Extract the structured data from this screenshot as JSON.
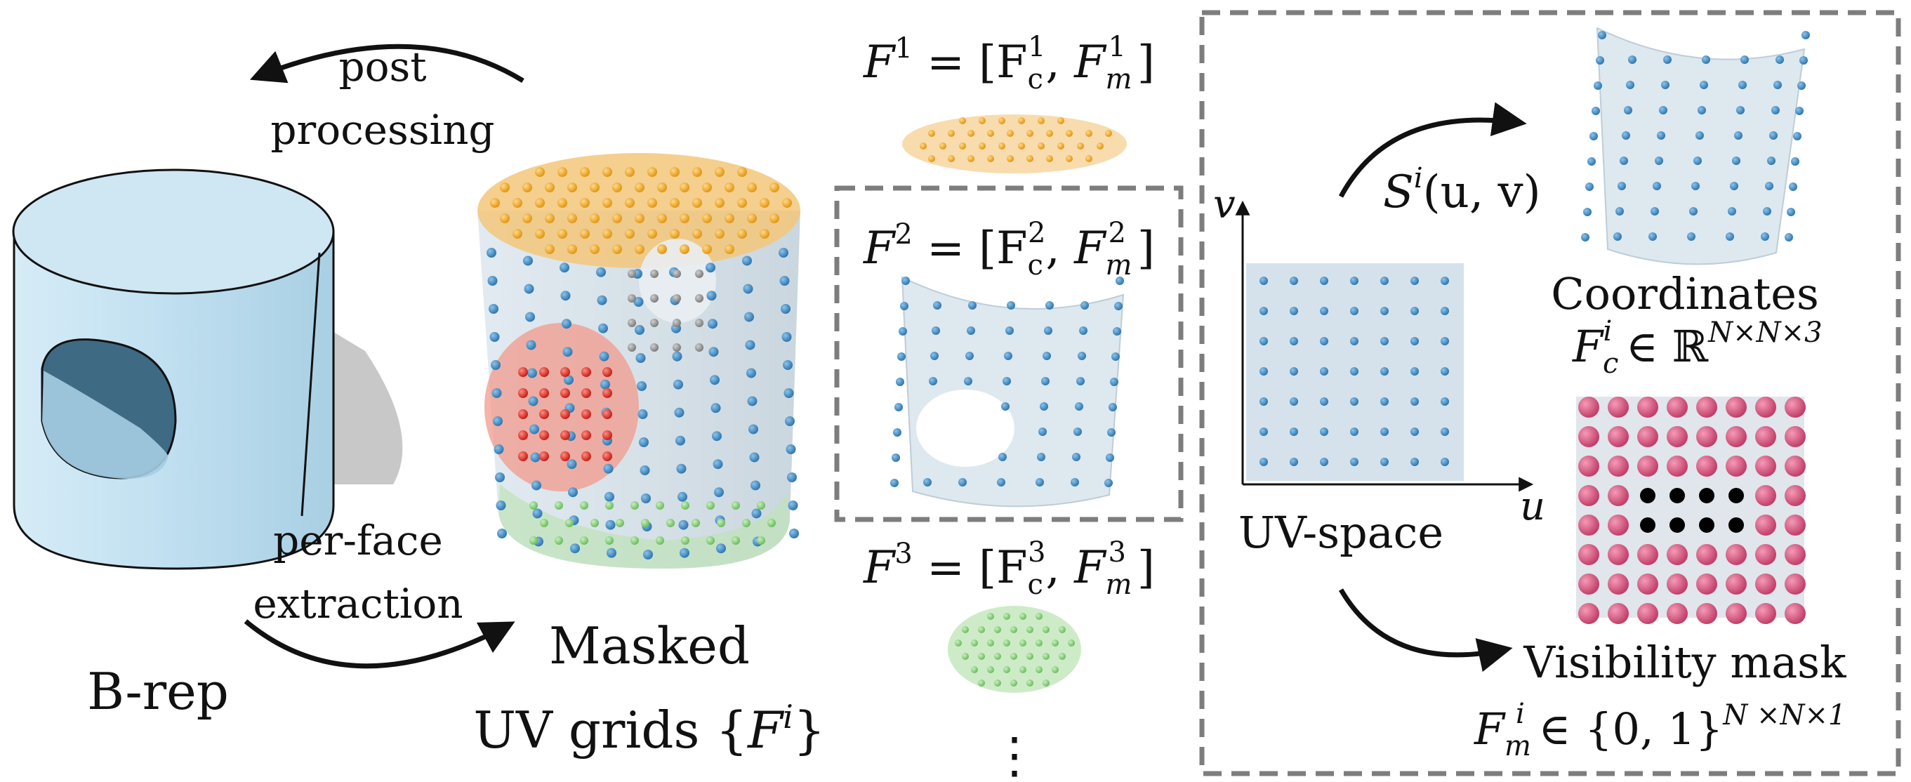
{
  "labels": {
    "post_processing_line1": "post",
    "post_processing_line2": "processing",
    "per_face_line1": "per-face",
    "per_face_line2": "extraction",
    "brep": "B-rep",
    "masked_line1": "Masked",
    "masked_line2_text": "UV grids {",
    "masked_line2_sym": "F",
    "masked_line2_sup": "i",
    "masked_line2_close": "}",
    "uv_space": "UV-space",
    "coordinates": "Coordinates",
    "visibility_mask": "Visibility mask",
    "axis_u": "u",
    "axis_v": "v",
    "ellipsis": "⋮"
  },
  "equations": {
    "f1": {
      "lhs": "F",
      "sup": "1",
      "eq": " = [F",
      "sub1": "c",
      "sup1": "1",
      "mid": ", ",
      "sym2": "F",
      "sub2": "m",
      "sup2": "1",
      "close": "]"
    },
    "f2": {
      "lhs": "F",
      "sup": "2",
      "eq": " = [F",
      "sub1": "c",
      "sup1": "2",
      "mid": ", ",
      "sym2": "F",
      "sub2": "m",
      "sup2": "2",
      "close": "]"
    },
    "f3": {
      "lhs": "F",
      "sup": "3",
      "eq": " = [F",
      "sub1": "c",
      "sup1": "3",
      "mid": ", ",
      "sym2": "F",
      "sub2": "m",
      "sup2": "3",
      "close": "]"
    },
    "surface": {
      "sym": "S",
      "sup": "i",
      "args": "(u, v)"
    },
    "coord_set": {
      "sym": "F",
      "sub": "c",
      "sup": "i",
      "rel": " ∈ ℝ",
      "exp": "N×N×3"
    },
    "mask_set": {
      "sym": "F",
      "sub": "m",
      "sup": "i",
      "rel": " ∈ {0, 1}",
      "exp": "N ×N×1"
    }
  },
  "colors": {
    "brep_face": "#bfdff0",
    "grid_face": "#c9d8e4",
    "top_face_orange": "#f3c77a",
    "bottom_face_green": "#bfe3b8",
    "hole_red": "#f29a8c",
    "point_blue": "#2f77b0",
    "point_orange": "#f0a020",
    "point_green": "#7ec870",
    "point_red": "#e2322a",
    "mask_pink": "#d9557e",
    "mask_black": "#000000",
    "dashed_border": "#7d7d7d"
  },
  "icons": {
    "arrow_post": "curved-arrow-left-icon",
    "arrow_extract": "curved-arrow-right-icon",
    "arrow_surface": "curved-arrow-up-icon",
    "arrow_mask": "curved-arrow-down-icon"
  }
}
